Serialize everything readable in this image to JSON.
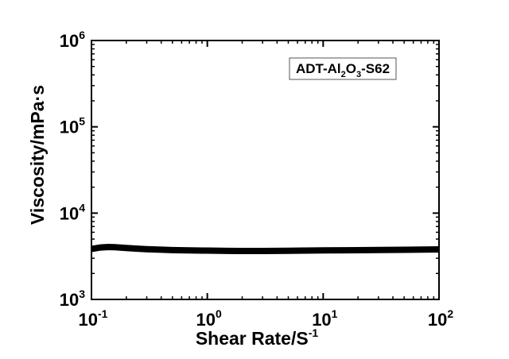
{
  "chart_data": {
    "type": "line",
    "title": "",
    "xlabel_base": "Shear Rate/S",
    "xlabel_sup": "-1",
    "ylabel": "Viscosity/mPa·s",
    "xscale": "log",
    "yscale": "log",
    "xlim": [
      0.1,
      100
    ],
    "ylim": [
      1000,
      1000000
    ],
    "grid": false,
    "x_ticks": [
      {
        "base": "10",
        "exp": "-1",
        "value": 0.1
      },
      {
        "base": "10",
        "exp": "0",
        "value": 1
      },
      {
        "base": "10",
        "exp": "1",
        "value": 10
      },
      {
        "base": "10",
        "exp": "2",
        "value": 100
      }
    ],
    "y_ticks": [
      {
        "base": "10",
        "exp": "3",
        "value": 1000
      },
      {
        "base": "10",
        "exp": "4",
        "value": 10000
      },
      {
        "base": "10",
        "exp": "5",
        "value": 100000
      },
      {
        "base": "10",
        "exp": "6",
        "value": 1000000
      }
    ],
    "legend": {
      "placement": "top-right",
      "parts": [
        {
          "t": "ADT-Al",
          "sub": false
        },
        {
          "t": "2",
          "sub": true
        },
        {
          "t": "O",
          "sub": false
        },
        {
          "t": "3",
          "sub": true
        },
        {
          "t": "-S62",
          "sub": false
        }
      ]
    },
    "series": [
      {
        "color": "#000000",
        "x": [
          0.1,
          0.12,
          0.14,
          0.16,
          0.2,
          0.25,
          0.3,
          0.4,
          0.5,
          0.7,
          1.0,
          1.5,
          2.0,
          3.0,
          5.0,
          7.0,
          10.0,
          15.0,
          20.0,
          30.0,
          50.0,
          70.0,
          100.0
        ],
        "y": [
          3850,
          4000,
          4050,
          4020,
          3950,
          3870,
          3820,
          3770,
          3730,
          3700,
          3680,
          3650,
          3640,
          3640,
          3660,
          3680,
          3700,
          3710,
          3720,
          3740,
          3760,
          3780,
          3800
        ]
      }
    ]
  }
}
